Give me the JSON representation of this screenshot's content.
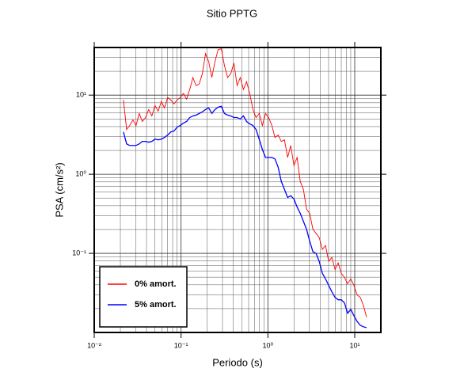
{
  "chart_data": {
    "type": "line",
    "title": "Sitio PPTG",
    "xlabel": "Periodo (s)",
    "ylabel": "PSA (cm/s²)",
    "xscale": "log",
    "yscale": "log",
    "grid": true,
    "legend": "lower left",
    "xlim": [
      0.01,
      20
    ],
    "ylim": [
      0.01,
      40
    ],
    "xticks": [
      {
        "value": 0.01,
        "label": "10⁻²"
      },
      {
        "value": 0.1,
        "label": "10⁻¹"
      },
      {
        "value": 1,
        "label": "10⁰"
      },
      {
        "value": 10,
        "label": "10¹"
      }
    ],
    "yticks": [
      {
        "value": 0.1,
        "label": "10⁻¹"
      },
      {
        "value": 1,
        "label": "10⁰"
      },
      {
        "value": 10,
        "label": "10¹"
      }
    ],
    "xminorticks": [
      0.02,
      0.03,
      0.04,
      0.05,
      0.06,
      0.07,
      0.08,
      0.09,
      0.2,
      0.3,
      0.4,
      0.5,
      0.6,
      0.7,
      0.8,
      0.9,
      2,
      3,
      4,
      5,
      6,
      7,
      8,
      9
    ],
    "yminorticks": [
      0.02,
      0.03,
      0.04,
      0.05,
      0.06,
      0.07,
      0.08,
      0.09,
      0.2,
      0.3,
      0.4,
      0.5,
      0.6,
      0.7,
      0.8,
      0.9,
      2,
      3,
      4,
      5,
      6,
      7,
      8,
      9,
      20,
      30
    ],
    "x": [
      0.0217,
      0.0236,
      0.0256,
      0.0279,
      0.0303,
      0.033,
      0.0358,
      0.039,
      0.0424,
      0.0461,
      0.0501,
      0.0545,
      0.0593,
      0.0644,
      0.0701,
      0.0762,
      0.0828,
      0.0901,
      0.0979,
      0.1065,
      0.1158,
      0.1259,
      0.1369,
      0.1488,
      0.1618,
      0.1759,
      0.1913,
      0.208,
      0.2262,
      0.2459,
      0.2674,
      0.2908,
      0.3162,
      0.3438,
      0.3738,
      0.4065,
      0.442,
      0.4806,
      0.5226,
      0.5682,
      0.6179,
      0.6719,
      0.7305,
      0.7943,
      0.8636,
      0.9391,
      1.021,
      1.11,
      1.207,
      1.313,
      1.427,
      1.552,
      1.688,
      1.835,
      1.995,
      2.17,
      2.359,
      2.565,
      2.789,
      3.033,
      3.298,
      3.586,
      3.899,
      4.24,
      4.61,
      5.012,
      5.45,
      5.926,
      6.444,
      7.006,
      7.618,
      8.284,
      9.007,
      9.793,
      10.65,
      11.58,
      12.59,
      13.69
    ],
    "series": [
      {
        "name": "0% amort.",
        "color": "#ff0000",
        "values": [
          8.7,
          3.68,
          4.13,
          4.86,
          4.13,
          5.86,
          4.64,
          5.21,
          6.58,
          5.46,
          7.39,
          6.28,
          8.3,
          6.89,
          9.33,
          8.7,
          7.74,
          8.7,
          9.33,
          10.5,
          8.9,
          11.8,
          16.7,
          13.2,
          13.8,
          18.7,
          33.5,
          26.6,
          16.7,
          26.6,
          37.7,
          38.5,
          23.6,
          16.7,
          18.7,
          25.4,
          13.2,
          16.7,
          11.8,
          14.8,
          10.5,
          6.58,
          5.21,
          5.86,
          4.13,
          5.86,
          5.21,
          4.13,
          2.91,
          3.13,
          2.6,
          2.72,
          1.63,
          2.31,
          1.29,
          1.63,
          0.811,
          0.643,
          0.36,
          0.32,
          0.201,
          0.179,
          0.159,
          0.112,
          0.126,
          0.0793,
          0.089,
          0.0628,
          0.0757,
          0.0559,
          0.0498,
          0.0413,
          0.0475,
          0.0394,
          0.0298,
          0.0278,
          0.022,
          0.0156
        ]
      },
      {
        "name": "5% amort.",
        "color": "#0000ff",
        "values": [
          3.43,
          2.42,
          2.31,
          2.31,
          2.31,
          2.42,
          2.6,
          2.6,
          2.54,
          2.6,
          2.78,
          2.72,
          2.78,
          2.91,
          3.13,
          3.43,
          3.51,
          3.94,
          4.13,
          4.43,
          4.64,
          5.21,
          5.46,
          5.59,
          5.86,
          6.14,
          6.58,
          6.89,
          5.86,
          6.58,
          7.05,
          7.22,
          5.86,
          5.59,
          5.46,
          5.21,
          5.21,
          4.98,
          5.46,
          4.64,
          4.33,
          4.13,
          3.68,
          2.78,
          2.06,
          1.63,
          1.63,
          1.63,
          1.56,
          1.23,
          0.811,
          0.643,
          0.509,
          0.534,
          0.486,
          0.385,
          0.32,
          0.254,
          0.201,
          0.142,
          0.105,
          0.1,
          0.0793,
          0.0559,
          0.0475,
          0.0394,
          0.0327,
          0.0278,
          0.0259,
          0.0259,
          0.0236,
          0.0175,
          0.0196,
          0.0163,
          0.0138,
          0.0123,
          0.0118,
          0.0115
        ]
      }
    ]
  }
}
